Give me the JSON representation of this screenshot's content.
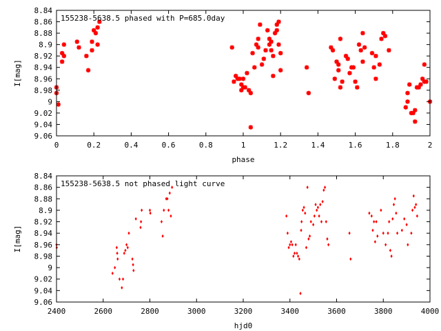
{
  "chart_data": [
    {
      "type": "scatter",
      "title": "155238-5638.5 phased with P=685.0day",
      "xlabel": "phase",
      "ylabel": "I[mag]",
      "xlim": [
        0,
        2
      ],
      "ylim": [
        9.06,
        8.84
      ],
      "y_inverted": true,
      "xticks": [
        "0",
        "0.2",
        "0.4",
        "0.6",
        "0.8",
        "1",
        "1.2",
        "1.4",
        "1.6",
        "1.8",
        "2"
      ],
      "yticks": [
        "8.84",
        "8.86",
        "8.88",
        "8.9",
        "8.92",
        "8.94",
        "8.96",
        "8.98",
        "9",
        "9.02",
        "9.04",
        "9.06"
      ],
      "marker": "star",
      "color": "#ff0000",
      "points": [
        [
          0.0,
          8.975
        ],
        [
          0.0,
          8.985
        ],
        [
          0.01,
          9.005
        ],
        [
          0.03,
          8.915
        ],
        [
          0.03,
          8.93
        ],
        [
          0.04,
          8.9
        ],
        [
          0.04,
          8.92
        ],
        [
          0.11,
          8.895
        ],
        [
          0.12,
          8.905
        ],
        [
          0.16,
          8.92
        ],
        [
          0.17,
          8.945
        ],
        [
          0.19,
          8.91
        ],
        [
          0.19,
          8.895
        ],
        [
          0.2,
          8.875
        ],
        [
          0.21,
          8.88
        ],
        [
          0.22,
          8.87
        ],
        [
          0.22,
          8.9
        ],
        [
          0.23,
          8.86
        ],
        [
          0.94,
          8.905
        ],
        [
          0.95,
          8.965
        ],
        [
          0.96,
          8.955
        ],
        [
          0.97,
          8.96
        ],
        [
          0.98,
          8.96
        ],
        [
          0.99,
          8.97
        ],
        [
          0.99,
          8.98
        ],
        [
          1.0,
          8.975
        ],
        [
          1.0,
          8.96
        ],
        [
          1.01,
          8.975
        ],
        [
          1.02,
          8.95
        ],
        [
          1.03,
          8.98
        ],
        [
          1.04,
          8.985
        ],
        [
          1.04,
          9.045
        ],
        [
          1.05,
          8.915
        ],
        [
          1.06,
          8.94
        ],
        [
          1.07,
          8.9
        ],
        [
          1.08,
          8.89
        ],
        [
          1.08,
          8.905
        ],
        [
          1.09,
          8.865
        ],
        [
          1.1,
          8.935
        ],
        [
          1.11,
          8.925
        ],
        [
          1.12,
          8.91
        ],
        [
          1.13,
          8.875
        ],
        [
          1.14,
          8.89
        ],
        [
          1.14,
          8.9
        ],
        [
          1.15,
          8.895
        ],
        [
          1.15,
          8.91
        ],
        [
          1.16,
          8.92
        ],
        [
          1.16,
          8.955
        ],
        [
          1.17,
          8.88
        ],
        [
          1.18,
          8.865
        ],
        [
          1.18,
          8.875
        ],
        [
          1.19,
          8.86
        ],
        [
          1.19,
          8.9
        ],
        [
          1.2,
          8.915
        ],
        [
          1.2,
          8.945
        ],
        [
          1.34,
          8.94
        ],
        [
          1.35,
          8.985
        ],
        [
          1.47,
          8.905
        ],
        [
          1.48,
          8.91
        ],
        [
          1.49,
          8.96
        ],
        [
          1.5,
          8.93
        ],
        [
          1.51,
          8.935
        ],
        [
          1.51,
          8.945
        ],
        [
          1.52,
          8.975
        ],
        [
          1.52,
          8.89
        ],
        [
          1.53,
          8.965
        ],
        [
          1.55,
          8.92
        ],
        [
          1.56,
          8.925
        ],
        [
          1.57,
          8.95
        ],
        [
          1.58,
          8.94
        ],
        [
          1.59,
          8.94
        ],
        [
          1.6,
          8.965
        ],
        [
          1.61,
          8.975
        ],
        [
          1.62,
          8.9
        ],
        [
          1.63,
          8.91
        ],
        [
          1.64,
          8.88
        ],
        [
          1.64,
          8.93
        ],
        [
          1.65,
          8.905
        ],
        [
          1.69,
          8.915
        ],
        [
          1.7,
          8.94
        ],
        [
          1.71,
          8.92
        ],
        [
          1.71,
          8.96
        ],
        [
          1.73,
          8.935
        ],
        [
          1.74,
          8.89
        ],
        [
          1.75,
          8.88
        ],
        [
          1.76,
          8.885
        ],
        [
          1.78,
          8.91
        ],
        [
          1.87,
          9.01
        ],
        [
          1.88,
          9.0
        ],
        [
          1.88,
          8.985
        ],
        [
          1.89,
          8.97
        ],
        [
          1.9,
          9.02
        ],
        [
          1.91,
          9.02
        ],
        [
          1.92,
          9.035
        ],
        [
          1.92,
          9.015
        ],
        [
          1.93,
          8.975
        ],
        [
          1.94,
          8.975
        ],
        [
          1.95,
          8.97
        ],
        [
          1.96,
          8.96
        ],
        [
          1.97,
          8.935
        ],
        [
          1.97,
          8.965
        ],
        [
          1.98,
          8.965
        ],
        [
          2.0,
          9.0
        ]
      ]
    },
    {
      "type": "scatter",
      "title": "155238-5638.5 not phased light curve",
      "xlabel": "hjd0",
      "ylabel": "I[mag]",
      "xlim": [
        2400,
        4000
      ],
      "ylim": [
        9.06,
        8.84
      ],
      "y_inverted": true,
      "xticks": [
        "2400",
        "2600",
        "2800",
        "3000",
        "3200",
        "3400",
        "3600",
        "3800",
        "4000"
      ],
      "yticks": [
        "8.84",
        "8.86",
        "8.88",
        "8.9",
        "8.92",
        "8.94",
        "8.96",
        "8.98",
        "9",
        "9.02",
        "9.04",
        "9.06"
      ],
      "marker": "diamond",
      "color": "#ff0000",
      "points": [
        [
          2400,
          8.96
        ],
        [
          2401,
          8.965
        ],
        [
          2640,
          9.01
        ],
        [
          2650,
          9.0
        ],
        [
          2658,
          8.965
        ],
        [
          2660,
          8.975
        ],
        [
          2662,
          8.985
        ],
        [
          2670,
          9.02
        ],
        [
          2680,
          9.035
        ],
        [
          2685,
          9.02
        ],
        [
          2690,
          8.975
        ],
        [
          2695,
          8.97
        ],
        [
          2700,
          8.96
        ],
        [
          2705,
          8.965
        ],
        [
          2710,
          8.94
        ],
        [
          2725,
          8.985
        ],
        [
          2728,
          8.995
        ],
        [
          2730,
          9.005
        ],
        [
          2740,
          8.915
        ],
        [
          2760,
          8.93
        ],
        [
          2762,
          8.92
        ],
        [
          2765,
          8.9
        ],
        [
          2800,
          8.9
        ],
        [
          2802,
          8.905
        ],
        [
          2850,
          8.92
        ],
        [
          2855,
          8.945
        ],
        [
          2860,
          8.9
        ],
        [
          2870,
          8.88
        ],
        [
          2875,
          8.88
        ],
        [
          2880,
          8.9
        ],
        [
          2885,
          8.87
        ],
        [
          2890,
          8.91
        ],
        [
          2895,
          8.86
        ],
        [
          3385,
          8.91
        ],
        [
          3390,
          8.94
        ],
        [
          3395,
          8.965
        ],
        [
          3400,
          8.96
        ],
        [
          3405,
          8.955
        ],
        [
          3410,
          8.96
        ],
        [
          3415,
          8.98
        ],
        [
          3420,
          8.975
        ],
        [
          3425,
          8.96
        ],
        [
          3430,
          8.975
        ],
        [
          3435,
          8.98
        ],
        [
          3440,
          8.985
        ],
        [
          3445,
          9.045
        ],
        [
          3448,
          8.935
        ],
        [
          3450,
          8.92
        ],
        [
          3455,
          8.9
        ],
        [
          3460,
          8.895
        ],
        [
          3465,
          8.905
        ],
        [
          3470,
          8.965
        ],
        [
          3475,
          8.86
        ],
        [
          3480,
          8.95
        ],
        [
          3485,
          8.945
        ],
        [
          3490,
          8.92
        ],
        [
          3500,
          8.925
        ],
        [
          3505,
          8.91
        ],
        [
          3510,
          8.89
        ],
        [
          3515,
          8.9
        ],
        [
          3520,
          8.895
        ],
        [
          3525,
          8.91
        ],
        [
          3530,
          8.89
        ],
        [
          3535,
          8.92
        ],
        [
          3540,
          8.885
        ],
        [
          3545,
          8.865
        ],
        [
          3550,
          8.86
        ],
        [
          3555,
          8.92
        ],
        [
          3560,
          8.95
        ],
        [
          3565,
          8.96
        ],
        [
          3655,
          8.94
        ],
        [
          3660,
          8.985
        ],
        [
          3740,
          8.905
        ],
        [
          3750,
          8.91
        ],
        [
          3755,
          8.935
        ],
        [
          3760,
          8.92
        ],
        [
          3765,
          8.955
        ],
        [
          3770,
          8.92
        ],
        [
          3775,
          8.945
        ],
        [
          3790,
          8.9
        ],
        [
          3800,
          8.94
        ],
        [
          3810,
          8.96
        ],
        [
          3820,
          8.94
        ],
        [
          3825,
          8.92
        ],
        [
          3830,
          8.97
        ],
        [
          3835,
          8.98
        ],
        [
          3840,
          8.915
        ],
        [
          3845,
          8.89
        ],
        [
          3850,
          8.88
        ],
        [
          3855,
          8.905
        ],
        [
          3860,
          8.94
        ],
        [
          3880,
          8.935
        ],
        [
          3890,
          8.915
        ],
        [
          3900,
          8.925
        ],
        [
          3905,
          8.96
        ],
        [
          3920,
          8.94
        ],
        [
          3925,
          8.9
        ],
        [
          3930,
          8.875
        ],
        [
          3935,
          8.895
        ],
        [
          3940,
          8.89
        ],
        [
          3945,
          8.91
        ]
      ]
    }
  ]
}
